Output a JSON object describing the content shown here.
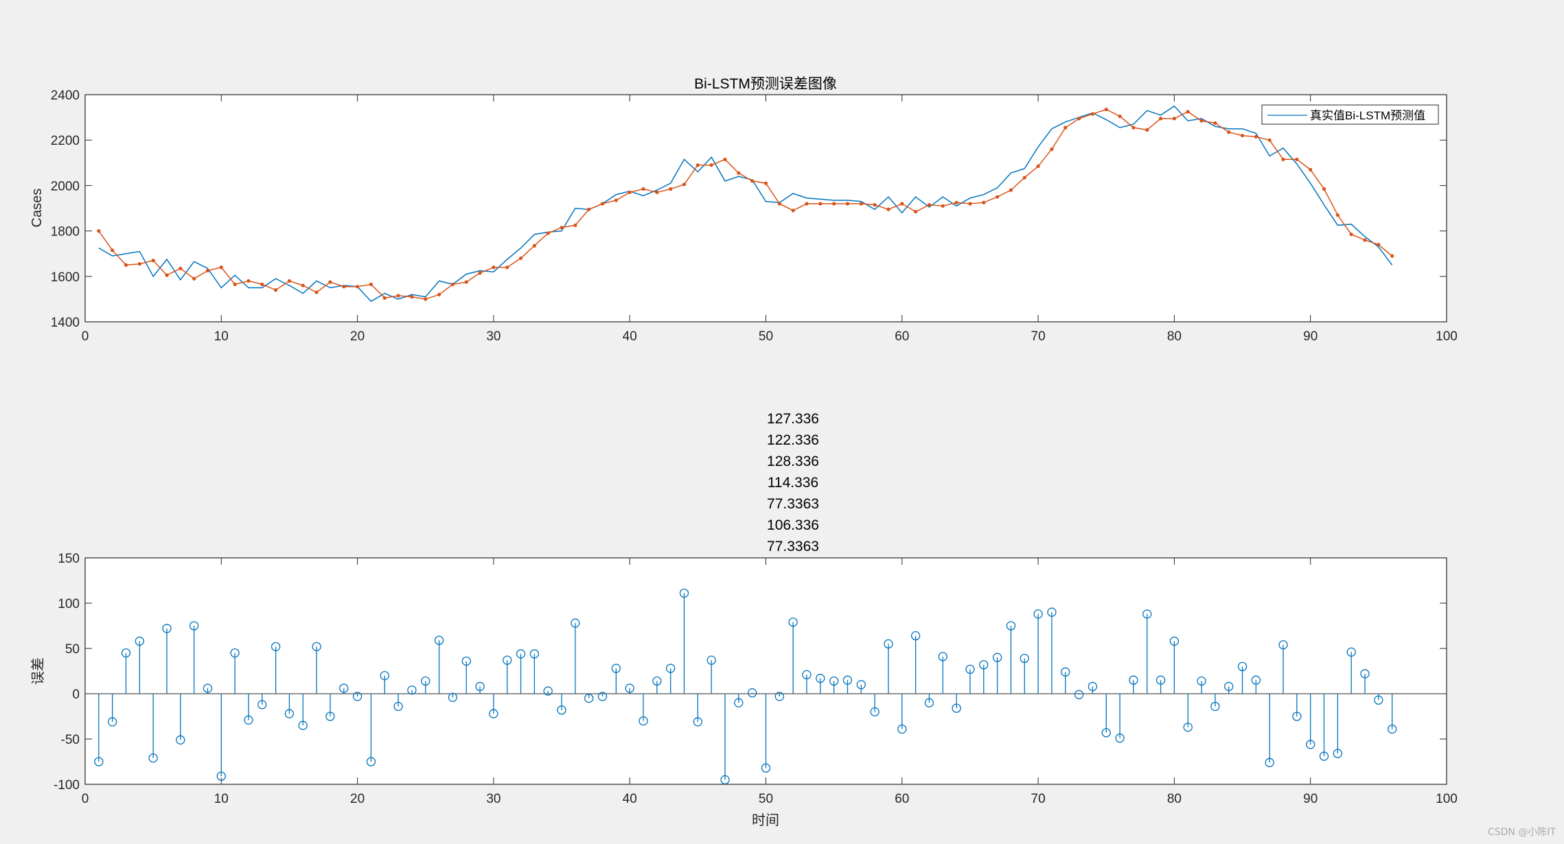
{
  "chart_data": [
    {
      "type": "line",
      "title": "Bi-LSTM预测误差图像",
      "xlabel": "",
      "ylabel": "Cases",
      "xlim": [
        0,
        100
      ],
      "ylim": [
        1400,
        2400
      ],
      "xticks": [
        0,
        10,
        20,
        30,
        40,
        50,
        60,
        70,
        80,
        90,
        100
      ],
      "yticks": [
        1400,
        1600,
        1800,
        2000,
        2200,
        2400
      ],
      "legend_position": "top-right",
      "legend_text": "真实值Bi-LSTM预测值",
      "x": [
        1,
        2,
        3,
        4,
        5,
        6,
        7,
        8,
        9,
        10,
        11,
        12,
        13,
        14,
        15,
        16,
        17,
        18,
        19,
        20,
        21,
        22,
        23,
        24,
        25,
        26,
        27,
        28,
        29,
        30,
        31,
        32,
        33,
        34,
        35,
        36,
        37,
        38,
        39,
        40,
        41,
        42,
        43,
        44,
        45,
        46,
        47,
        48,
        49,
        50,
        51,
        52,
        53,
        54,
        55,
        56,
        57,
        58,
        59,
        60,
        61,
        62,
        63,
        64,
        65,
        66,
        67,
        68,
        69,
        70,
        71,
        72,
        73,
        74,
        75,
        76,
        77,
        78,
        79,
        80,
        81,
        82,
        83,
        84,
        85,
        86,
        87,
        88,
        89,
        90,
        91,
        92,
        93,
        94,
        95,
        96
      ],
      "series": [
        {
          "color": "#0072bd",
          "marker": "none",
          "values": [
            1725,
            1690,
            1700,
            1710,
            1600,
            1675,
            1585,
            1665,
            1635,
            1550,
            1605,
            1550,
            1550,
            1590,
            1560,
            1525,
            1580,
            1550,
            1560,
            1555,
            1490,
            1525,
            1500,
            1520,
            1510,
            1580,
            1565,
            1610,
            1625,
            1620,
            1675,
            1725,
            1785,
            1795,
            1800,
            1900,
            1895,
            1920,
            1960,
            1975,
            1955,
            1980,
            2010,
            2115,
            2060,
            2125,
            2020,
            2040,
            2025,
            1930,
            1925,
            1965,
            1945,
            1940,
            1935,
            1935,
            1930,
            1895,
            1950,
            1880,
            1950,
            1905,
            1950,
            1910,
            1945,
            1960,
            1990,
            2055,
            2075,
            2170,
            2250,
            2280,
            2300,
            2320,
            2290,
            2255,
            2270,
            2330,
            2310,
            2350,
            2285,
            2295,
            2260,
            2250,
            2250,
            2230,
            2130,
            2165,
            2095,
            2010,
            1915,
            1825,
            1830,
            1775,
            1730,
            1650
          ]
        },
        {
          "color": "#d95319",
          "marker": "dot",
          "values": [
            1800,
            1715,
            1650,
            1655,
            1670,
            1605,
            1635,
            1590,
            1625,
            1640,
            1565,
            1580,
            1565,
            1540,
            1580,
            1560,
            1530,
            1575,
            1555,
            1555,
            1565,
            1505,
            1515,
            1510,
            1500,
            1520,
            1565,
            1575,
            1615,
            1640,
            1640,
            1680,
            1735,
            1790,
            1815,
            1825,
            1895,
            1920,
            1935,
            1970,
            1985,
            1970,
            1985,
            2005,
            2090,
            2090,
            2115,
            2055,
            2020,
            2010,
            1920,
            1890,
            1920,
            1920,
            1920,
            1920,
            1920,
            1915,
            1895,
            1920,
            1885,
            1915,
            1910,
            1925,
            1920,
            1925,
            1950,
            1980,
            2035,
            2085,
            2160,
            2255,
            2295,
            2315,
            2335,
            2305,
            2255,
            2245,
            2295,
            2295,
            2325,
            2285,
            2275,
            2235,
            2220,
            2215,
            2200,
            2115,
            2115,
            2070,
            1985,
            1870,
            1785,
            1760,
            1740,
            1690
          ]
        }
      ]
    },
    {
      "type": "stem",
      "title": "",
      "xlabel": "时间",
      "ylabel": "误差",
      "xlim": [
        0,
        100
      ],
      "ylim": [
        -100,
        150
      ],
      "xticks": [
        0,
        10,
        20,
        30,
        40,
        50,
        60,
        70,
        80,
        90,
        100
      ],
      "yticks": [
        -100,
        -50,
        0,
        50,
        100,
        150
      ],
      "color": "#0072bd",
      "x": [
        1,
        2,
        3,
        4,
        5,
        6,
        7,
        8,
        9,
        10,
        11,
        12,
        13,
        14,
        15,
        16,
        17,
        18,
        19,
        20,
        21,
        22,
        23,
        24,
        25,
        26,
        27,
        28,
        29,
        30,
        31,
        32,
        33,
        34,
        35,
        36,
        37,
        38,
        39,
        40,
        41,
        42,
        43,
        44,
        45,
        46,
        47,
        48,
        49,
        50,
        51,
        52,
        53,
        54,
        55,
        56,
        57,
        58,
        59,
        60,
        61,
        62,
        63,
        64,
        65,
        66,
        67,
        68,
        69,
        70,
        71,
        72,
        73,
        74,
        75,
        76,
        77,
        78,
        79,
        80,
        81,
        82,
        83,
        84,
        85,
        86,
        87,
        88,
        89,
        90,
        91,
        92,
        93,
        94,
        95,
        96
      ],
      "values": [
        -75,
        -31,
        45,
        58,
        -71,
        72,
        -51,
        75,
        6,
        -91,
        45,
        -29,
        -12,
        52,
        -22,
        -35,
        52,
        -25,
        6,
        -3,
        -75,
        20,
        -14,
        4,
        14,
        59,
        -4,
        36,
        8,
        -22,
        37,
        44,
        44,
        3,
        -18,
        78,
        -5,
        -3,
        28,
        6,
        -30,
        14,
        28,
        111,
        -31,
        37,
        -95,
        -10,
        1,
        -82,
        -3,
        79,
        21,
        17,
        14,
        15,
        10,
        -20,
        55,
        -39,
        64,
        -10,
        41,
        -16,
        27,
        32,
        40,
        75,
        39,
        88,
        90,
        24,
        -1,
        8,
        -43,
        -49,
        15,
        88,
        15,
        58,
        -37,
        14,
        -14,
        8,
        30,
        15,
        -76,
        54,
        -25,
        -56,
        -69,
        -66,
        46,
        22,
        -7,
        -39
      ]
    }
  ],
  "overlay_labels": [
    "127.336",
    "122.336",
    "128.336",
    "114.336",
    "77.3363",
    "106.336",
    "77.3363"
  ],
  "watermark": "CSDN @小陈IT"
}
